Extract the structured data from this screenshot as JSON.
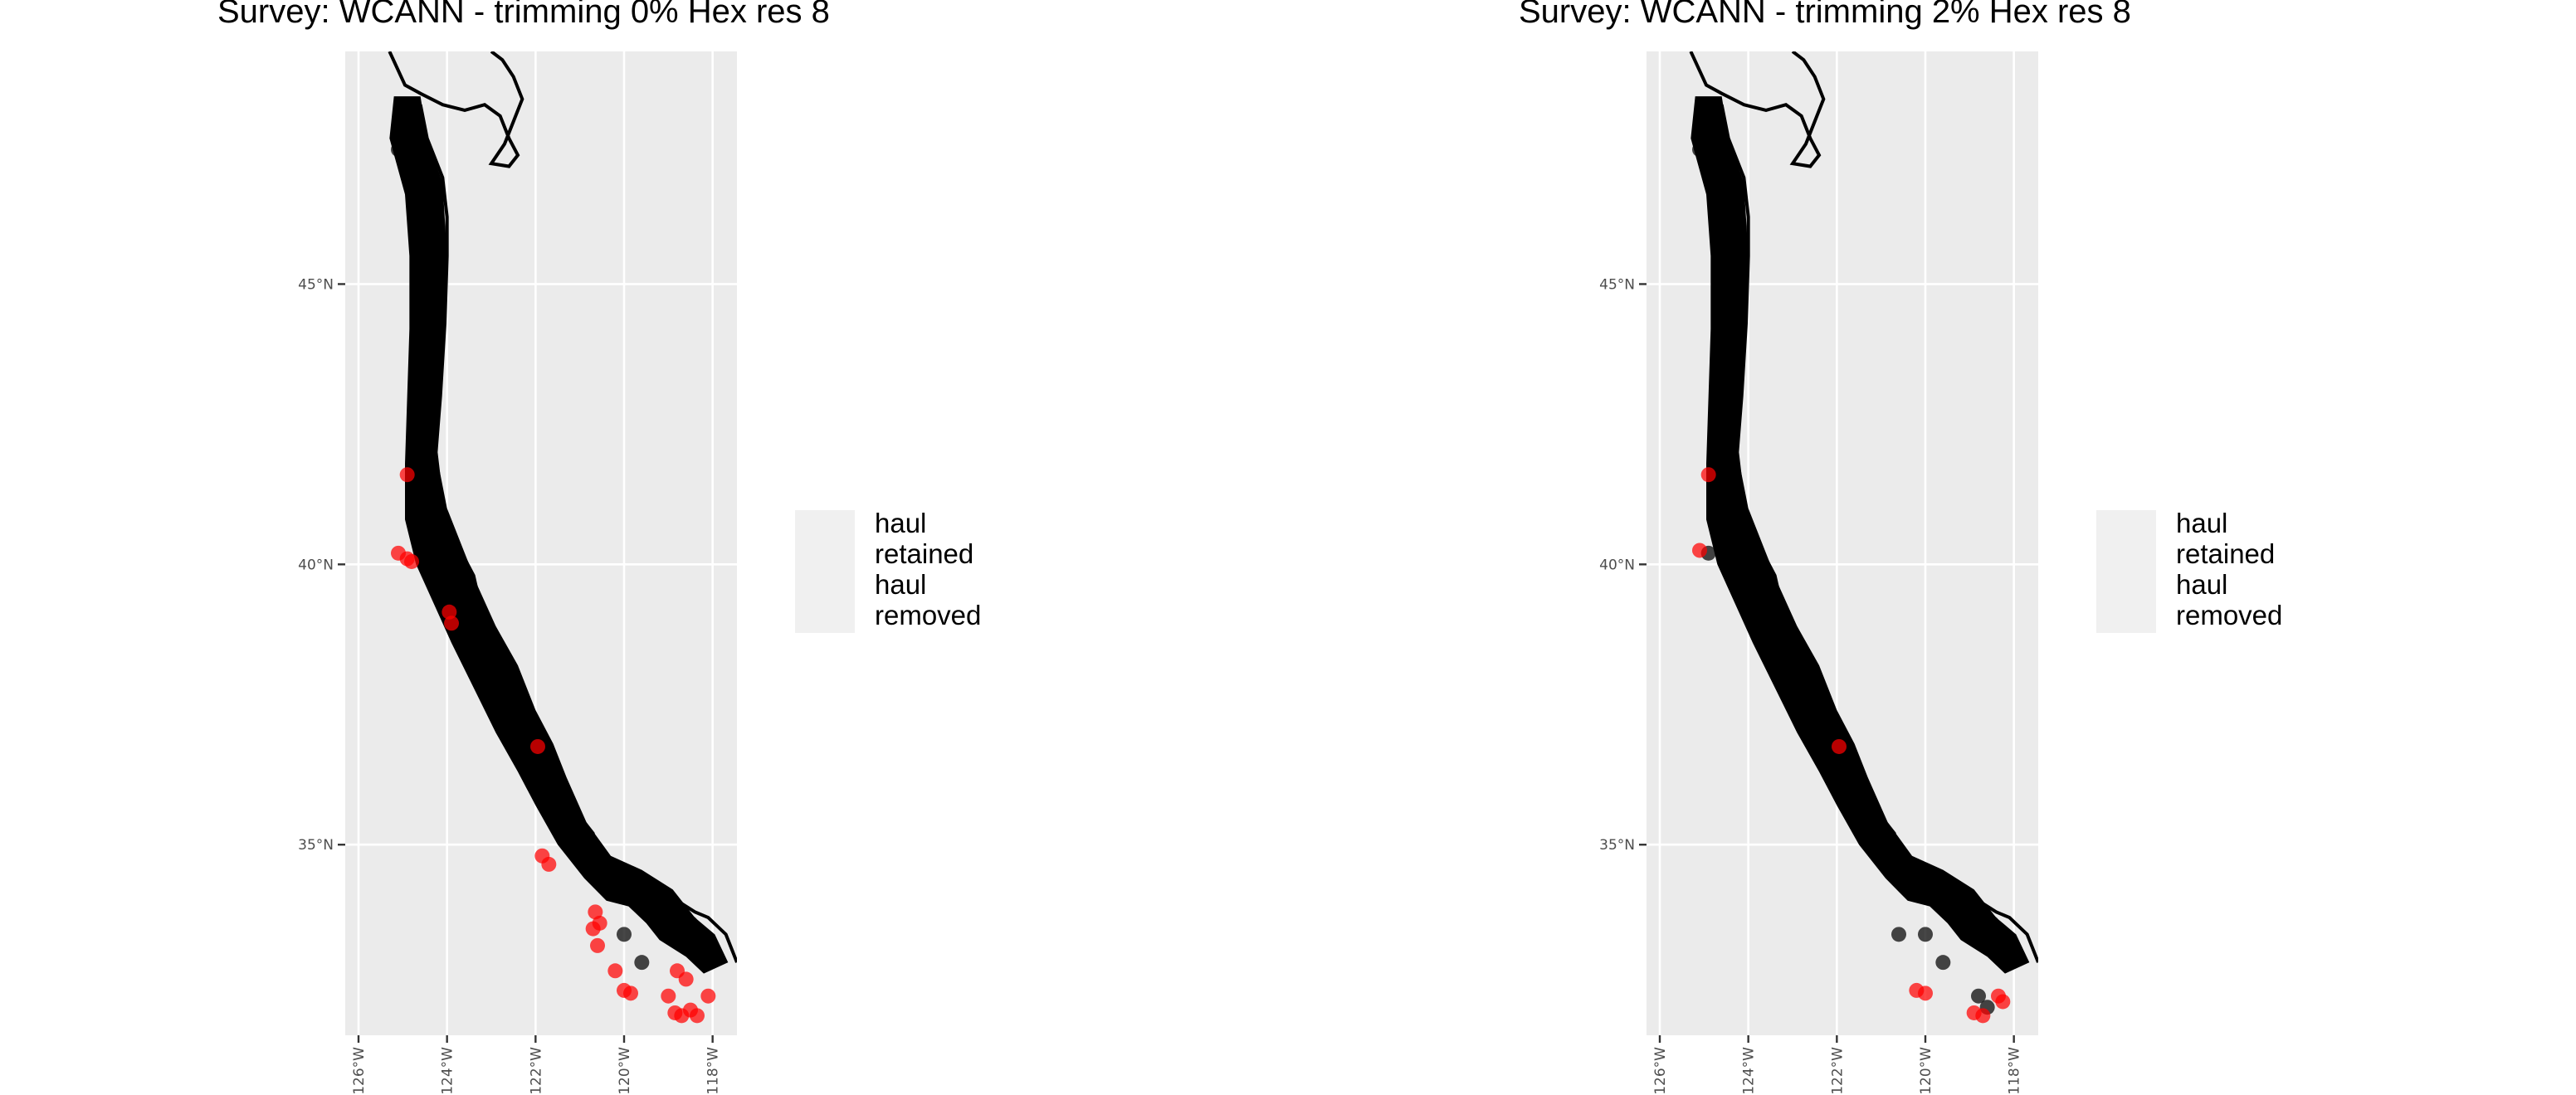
{
  "chart_data": [
    {
      "type": "scatter",
      "title": "Survey: WCANN - trimming 0% Hex res 8",
      "xlim": [
        -126.3,
        -117.45
      ],
      "ylim": [
        31.6,
        49.15
      ],
      "x_ticks": [
        -126,
        -124,
        -122,
        -120,
        -118
      ],
      "x_tick_labels": [
        "126°W",
        "124°W",
        "122°W",
        "120°W",
        "118°W"
      ],
      "y_ticks": [
        35,
        40,
        45
      ],
      "y_tick_labels": [
        "35°N",
        "40°N",
        "45°N"
      ],
      "grid": true,
      "legend": "right",
      "series": [
        {
          "name": "haul retained",
          "color": "#000000",
          "points": [
            [
              -125.1,
              47.4
            ],
            [
              -124.3,
              46.9
            ],
            [
              -124.4,
              45.7
            ],
            [
              -124.25,
              44.5
            ],
            [
              -124.35,
              43.2
            ],
            [
              -124.45,
              42.1
            ],
            [
              -124.3,
              41.0
            ],
            [
              -124.0,
              40.1
            ],
            [
              -123.6,
              39.3
            ],
            [
              -123.2,
              38.7
            ],
            [
              -122.7,
              37.9
            ],
            [
              -122.4,
              37.2
            ],
            [
              -121.95,
              36.6
            ],
            [
              -121.8,
              36.0
            ],
            [
              -121.35,
              35.4
            ],
            [
              -120.85,
              34.9
            ],
            [
              -120.4,
              34.45
            ],
            [
              -119.7,
              34.25
            ],
            [
              -119.0,
              33.95
            ],
            [
              -118.5,
              33.6
            ],
            [
              -118.2,
              33.1
            ],
            [
              -120.0,
              33.4
            ],
            [
              -119.6,
              32.9
            ]
          ]
        },
        {
          "name": "haul removed",
          "color": "#ff0000",
          "points": [
            [
              -124.9,
              41.6
            ],
            [
              -125.1,
              40.2
            ],
            [
              -124.9,
              40.1
            ],
            [
              -124.8,
              40.05
            ],
            [
              -123.95,
              39.15
            ],
            [
              -123.9,
              38.95
            ],
            [
              -121.95,
              36.75
            ],
            [
              -121.85,
              34.8
            ],
            [
              -121.7,
              34.65
            ],
            [
              -120.7,
              33.5
            ],
            [
              -120.6,
              33.2
            ],
            [
              -120.65,
              33.8
            ],
            [
              -120.55,
              33.6
            ],
            [
              -120.2,
              32.75
            ],
            [
              -120.0,
              32.4
            ],
            [
              -119.85,
              32.35
            ],
            [
              -119.0,
              32.3
            ],
            [
              -118.8,
              32.75
            ],
            [
              -118.6,
              32.6
            ],
            [
              -118.5,
              32.05
            ],
            [
              -118.7,
              31.95
            ],
            [
              -118.35,
              31.95
            ],
            [
              -118.1,
              32.3
            ],
            [
              -118.85,
              32.0
            ]
          ]
        }
      ]
    },
    {
      "type": "scatter",
      "title": "Survey: WCANN - trimming 2% Hex res 8",
      "xlim": [
        -126.3,
        -117.45
      ],
      "ylim": [
        31.6,
        49.15
      ],
      "x_ticks": [
        -126,
        -124,
        -122,
        -120,
        -118
      ],
      "x_tick_labels": [
        "126°W",
        "124°W",
        "122°W",
        "120°W",
        "118°W"
      ],
      "y_ticks": [
        35,
        40,
        45
      ],
      "y_tick_labels": [
        "35°N",
        "40°N",
        "45°N"
      ],
      "grid": true,
      "legend": "right",
      "series": [
        {
          "name": "haul retained",
          "color": "#000000",
          "points": [
            [
              -125.1,
              47.4
            ],
            [
              -124.3,
              46.9
            ],
            [
              -124.4,
              45.7
            ],
            [
              -124.25,
              44.5
            ],
            [
              -124.35,
              43.2
            ],
            [
              -124.45,
              42.1
            ],
            [
              -124.3,
              41.0
            ],
            [
              -124.0,
              40.1
            ],
            [
              -123.6,
              39.3
            ],
            [
              -123.2,
              38.7
            ],
            [
              -122.7,
              37.9
            ],
            [
              -122.4,
              37.2
            ],
            [
              -121.95,
              36.6
            ],
            [
              -121.8,
              36.0
            ],
            [
              -121.35,
              35.4
            ],
            [
              -120.85,
              34.9
            ],
            [
              -120.4,
              34.45
            ],
            [
              -119.7,
              34.25
            ],
            [
              -119.0,
              33.95
            ],
            [
              -118.5,
              33.6
            ],
            [
              -118.2,
              33.1
            ],
            [
              -120.0,
              33.4
            ],
            [
              -119.6,
              32.9
            ],
            [
              -124.9,
              40.2
            ],
            [
              -123.95,
              39.1
            ],
            [
              -120.6,
              33.4
            ],
            [
              -118.8,
              32.3
            ],
            [
              -118.6,
              32.1
            ]
          ]
        },
        {
          "name": "haul removed",
          "color": "#ff0000",
          "points": [
            [
              -124.9,
              41.6
            ],
            [
              -125.1,
              40.25
            ],
            [
              -121.95,
              36.75
            ],
            [
              -120.2,
              32.4
            ],
            [
              -120.0,
              32.35
            ],
            [
              -118.9,
              32.0
            ],
            [
              -118.7,
              31.95
            ],
            [
              -118.35,
              32.3
            ],
            [
              -118.25,
              32.2
            ]
          ]
        }
      ]
    }
  ]
}
